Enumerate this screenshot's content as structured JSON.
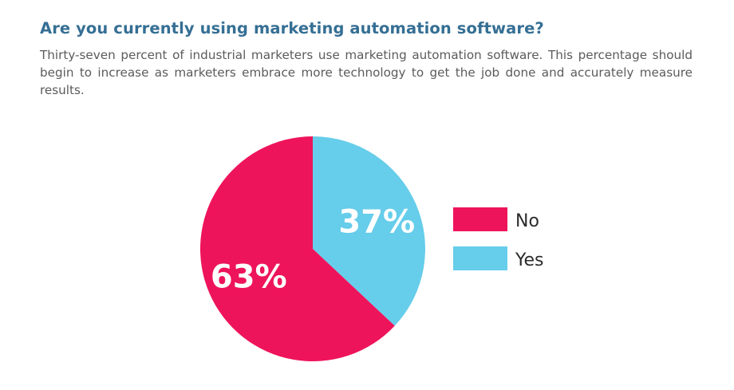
{
  "header": {
    "title": "Are you currently using marketing automation software?",
    "description": "Thirty-seven percent of industrial marketers use marketing automation software. This percentage should begin to increase as marketers embrace more technology to get the job done and accurately measure results."
  },
  "chart_data": {
    "type": "pie",
    "title": "",
    "series": [
      {
        "name": "Yes",
        "value": 37,
        "label": "37%",
        "color": "#66cdea"
      },
      {
        "name": "No",
        "value": 63,
        "label": "63%",
        "color": "#ee145b"
      }
    ],
    "legend": {
      "position": "right",
      "items": [
        {
          "name": "No",
          "color": "#ee145b"
        },
        {
          "name": "Yes",
          "color": "#66cdea"
        }
      ]
    }
  }
}
